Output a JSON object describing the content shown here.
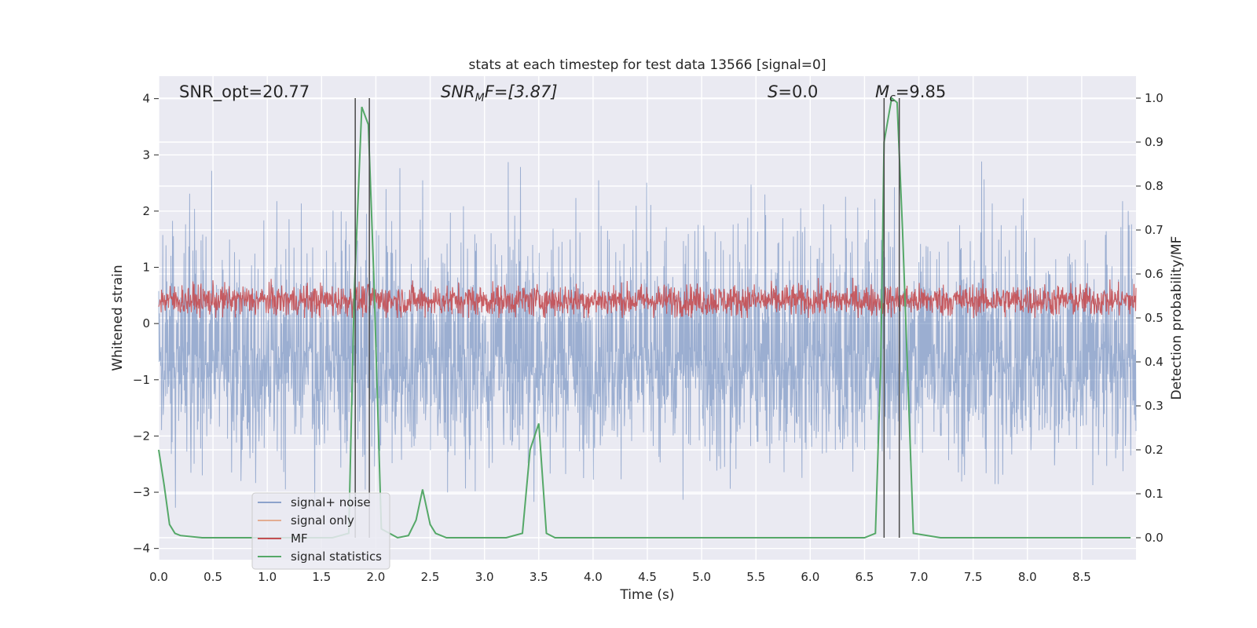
{
  "chart_data": {
    "type": "line",
    "title": "stats at each timestep for test data 13566 [signal=0]",
    "xlabel": "Time (s)",
    "ylabel": "Whitened strain",
    "ylabel_right": "Detection probability/MF",
    "xlim": [
      0.0,
      9.0
    ],
    "ylim": [
      -4.2,
      4.4
    ],
    "ylim_right": [
      -0.05,
      1.05
    ],
    "x_ticks": [
      "0.0",
      "0.5",
      "1.0",
      "1.5",
      "2.0",
      "2.5",
      "3.0",
      "3.5",
      "4.0",
      "4.5",
      "5.0",
      "5.5",
      "6.0",
      "6.5",
      "7.0",
      "7.5",
      "8.0",
      "8.5"
    ],
    "y_ticks": [
      "4",
      "3",
      "2",
      "1",
      "0",
      "−1",
      "−2",
      "−3",
      "−4"
    ],
    "y_ticks_right": [
      "1.0",
      "0.9",
      "0.8",
      "0.7",
      "0.6",
      "0.5",
      "0.4",
      "0.3",
      "0.2",
      "0.1",
      "0.0"
    ],
    "grid": true,
    "legend_position": "lower-left",
    "annotations": {
      "snr_opt": "SNR_opt=20.77",
      "snr_mf_main": "SNR",
      "snr_mf_sub": "M",
      "snr_mf_tail": "F=[3.87]",
      "s_main": "S",
      "s_tail": "=0.0",
      "mc_main": "M",
      "mc_sub": "c",
      "mc_tail": "=9.85"
    },
    "vertical_lines_x": [
      1.81,
      1.94,
      6.68,
      6.82
    ],
    "series": [
      {
        "name": "signal+ noise",
        "color": "#4c72b0",
        "axis": "left",
        "description_values": "noise band approx -2.3..2.4 with spikes to about 4.0 and down to -3.4",
        "band": [
          -2.3,
          2.4
        ]
      },
      {
        "name": "signal only",
        "color": "#dd8452",
        "axis": "left",
        "values": []
      },
      {
        "name": "MF",
        "color": "#c44e52",
        "axis": "right",
        "band": [
          0.5,
          0.6
        ]
      },
      {
        "name": "signal statistics",
        "color": "#55a868",
        "axis": "right",
        "x": [
          0.0,
          0.05,
          0.1,
          0.15,
          0.2,
          0.4,
          1.0,
          1.6,
          1.75,
          1.8,
          1.87,
          1.93,
          1.98,
          2.05,
          2.2,
          2.3,
          2.37,
          2.43,
          2.5,
          2.55,
          2.65,
          3.2,
          3.35,
          3.42,
          3.5,
          3.57,
          3.65,
          4.5,
          5.5,
          6.5,
          6.6,
          6.65,
          6.68,
          6.75,
          6.8,
          6.85,
          6.95,
          7.2,
          8.0,
          8.95
        ],
        "y": [
          0.2,
          0.12,
          0.03,
          0.01,
          0.005,
          0.0,
          0.0,
          0.0,
          0.01,
          0.55,
          0.98,
          0.94,
          0.6,
          0.02,
          0.0,
          0.005,
          0.04,
          0.11,
          0.03,
          0.01,
          0.0,
          0.0,
          0.01,
          0.2,
          0.26,
          0.01,
          0.0,
          0.0,
          0.0,
          0.0,
          0.01,
          0.4,
          0.9,
          1.0,
          0.99,
          0.7,
          0.01,
          0.0,
          0.0,
          0.0
        ]
      }
    ]
  }
}
